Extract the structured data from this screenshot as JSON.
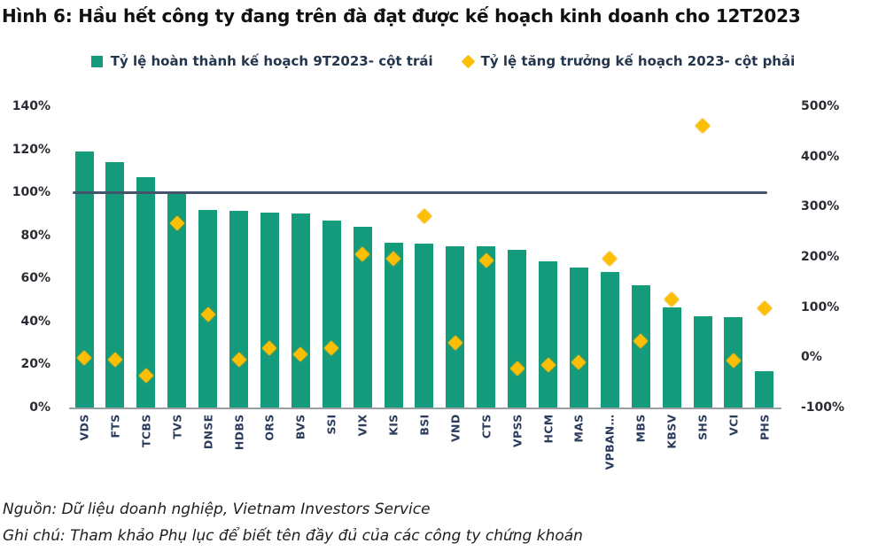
{
  "title": "Hình 6: Hầu hết công ty đang trên đà đạt được kế hoạch kinh doanh cho 12T2023",
  "legend": {
    "items": [
      {
        "label": "Tỷ lệ hoàn thành kế hoạch 9T2023- cột trái",
        "marker": "square",
        "color": "#139b7c"
      },
      {
        "label": "Tỷ lệ tăng trưởng kế hoạch 2023- cột phải",
        "marker": "diamond",
        "color": "#fcbf05"
      }
    ]
  },
  "footer": {
    "source": "Nguồn: Dữ liệu doanh nghiệp, Vietnam Investors Service",
    "note": "Ghi chú: Tham khảo Phụ lục để biết tên đầy đủ của các công ty chứng khoán"
  },
  "chart_data": {
    "type": "bar",
    "subtype": "bar-left-axis with scatter-diamonds-right-axis",
    "categories": [
      "VDS",
      "FTS",
      "TCBS",
      "TVS",
      "DNSE",
      "HDBS",
      "ORS",
      "BVS",
      "SSI",
      "VIX",
      "KIS",
      "BSI",
      "VND",
      "CTS",
      "VPSS",
      "HCM",
      "MAS",
      "VPBAN…",
      "MBS",
      "KBSV",
      "SHS",
      "VCI",
      "PHS"
    ],
    "series": [
      {
        "name": "Tỷ lệ hoàn thành kế hoạch 9T2023- cột trái",
        "type": "bar",
        "axis": "left",
        "color": "#139b7c",
        "values": [
          119,
          114,
          107,
          100,
          92,
          91.5,
          90.5,
          90,
          87,
          84,
          76.5,
          76,
          75,
          75,
          73.5,
          68,
          65,
          63,
          57,
          46.5,
          42.5,
          42,
          17
        ]
      },
      {
        "name": "Tỷ lệ tăng trưởng kế hoạch 2023- cột phải",
        "type": "scatter",
        "axis": "right",
        "color": "#fcbf05",
        "values": [
          -2,
          -4,
          -36,
          267,
          85,
          -4,
          18,
          6,
          18,
          206,
          197,
          281,
          29,
          193,
          -22,
          -16,
          -10,
          197,
          32,
          116,
          461,
          -7,
          97
        ]
      }
    ],
    "left_axis": {
      "min": 0,
      "max": 140,
      "tick_values": [
        140,
        120,
        100,
        80,
        60,
        40,
        20,
        0
      ],
      "tick_labels": [
        "140%",
        "120%",
        "100%",
        "80%",
        "60%",
        "40%",
        "20%",
        "0%"
      ]
    },
    "right_axis": {
      "min": -100,
      "max": 500,
      "tick_values": [
        500,
        400,
        300,
        200,
        100,
        0,
        -100
      ],
      "tick_labels": [
        "500%",
        "400%",
        "300%",
        "200%",
        "100%",
        "0%",
        "-100%"
      ]
    },
    "reference_line": {
      "axis": "left",
      "value": 100,
      "color": "#44546a"
    },
    "grid": false,
    "legend_position": "top-center"
  }
}
